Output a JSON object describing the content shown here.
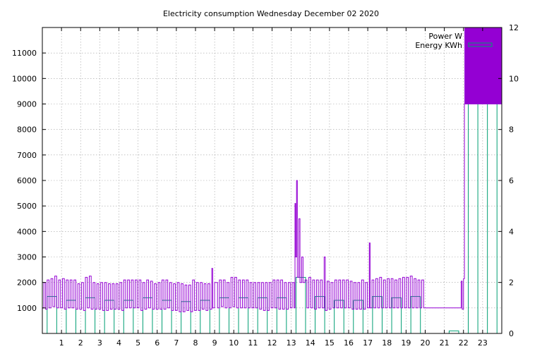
{
  "chart_data": {
    "type": "line",
    "title": "Electricity consumption Wednesday December 02 2020",
    "xlabel": "",
    "ylabel": "",
    "y2label": "",
    "xlim": [
      0,
      24
    ],
    "ylim": [
      0,
      12000
    ],
    "y2lim": [
      0,
      12
    ],
    "x_ticks": [
      1,
      2,
      3,
      4,
      5,
      6,
      7,
      8,
      9,
      10,
      11,
      12,
      13,
      14,
      15,
      16,
      17,
      18,
      19,
      20,
      21,
      22,
      23
    ],
    "y_ticks": [
      1000,
      2000,
      3000,
      4000,
      5000,
      6000,
      7000,
      8000,
      9000,
      10000,
      11000
    ],
    "y2_ticks": [
      0,
      2,
      4,
      6,
      8,
      10,
      12
    ],
    "grid": true,
    "legend": "top-right",
    "series": [
      {
        "name": "Power W",
        "axis": "left",
        "style": "steps",
        "color": "#9400d3",
        "points": [
          [
            0.0,
            1000
          ],
          [
            0.08,
            2000
          ],
          [
            0.17,
            950
          ],
          [
            0.25,
            2100
          ],
          [
            0.35,
            1000
          ],
          [
            0.45,
            2150
          ],
          [
            0.55,
            1050
          ],
          [
            0.65,
            2250
          ],
          [
            0.75,
            1000
          ],
          [
            0.85,
            2100
          ],
          [
            0.95,
            1000
          ],
          [
            1.05,
            2150
          ],
          [
            1.15,
            950
          ],
          [
            1.25,
            2100
          ],
          [
            1.35,
            1000
          ],
          [
            1.45,
            2100
          ],
          [
            1.55,
            1000
          ],
          [
            1.65,
            2100
          ],
          [
            1.75,
            950
          ],
          [
            1.85,
            1950
          ],
          [
            1.95,
            950
          ],
          [
            2.05,
            2000
          ],
          [
            2.15,
            900
          ],
          [
            2.25,
            2200
          ],
          [
            2.35,
            1000
          ],
          [
            2.45,
            2250
          ],
          [
            2.55,
            950
          ],
          [
            2.65,
            2000
          ],
          [
            2.75,
            950
          ],
          [
            2.85,
            1950
          ],
          [
            2.95,
            950
          ],
          [
            3.05,
            2000
          ],
          [
            3.15,
            900
          ],
          [
            3.25,
            2000
          ],
          [
            3.35,
            900
          ],
          [
            3.45,
            1950
          ],
          [
            3.55,
            950
          ],
          [
            3.65,
            1950
          ],
          [
            3.75,
            950
          ],
          [
            3.85,
            1950
          ],
          [
            3.95,
            950
          ],
          [
            4.05,
            2000
          ],
          [
            4.15,
            900
          ],
          [
            4.25,
            2100
          ],
          [
            4.35,
            1000
          ],
          [
            4.45,
            2100
          ],
          [
            4.55,
            1000
          ],
          [
            4.65,
            2100
          ],
          [
            4.75,
            1000
          ],
          [
            4.85,
            2100
          ],
          [
            4.95,
            1000
          ],
          [
            5.05,
            2100
          ],
          [
            5.15,
            900
          ],
          [
            5.25,
            2000
          ],
          [
            5.35,
            950
          ],
          [
            5.45,
            2100
          ],
          [
            5.55,
            1000
          ],
          [
            5.65,
            2050
          ],
          [
            5.75,
            950
          ],
          [
            5.85,
            1950
          ],
          [
            5.95,
            950
          ],
          [
            6.05,
            2000
          ],
          [
            6.15,
            950
          ],
          [
            6.25,
            2100
          ],
          [
            6.35,
            950
          ],
          [
            6.45,
            2100
          ],
          [
            6.55,
            1000
          ],
          [
            6.65,
            2000
          ],
          [
            6.75,
            900
          ],
          [
            6.85,
            1950
          ],
          [
            6.95,
            900
          ],
          [
            7.05,
            2000
          ],
          [
            7.15,
            850
          ],
          [
            7.25,
            1950
          ],
          [
            7.35,
            850
          ],
          [
            7.45,
            1900
          ],
          [
            7.55,
            900
          ],
          [
            7.65,
            1900
          ],
          [
            7.75,
            850
          ],
          [
            7.85,
            2100
          ],
          [
            7.95,
            900
          ],
          [
            8.05,
            2000
          ],
          [
            8.15,
            900
          ],
          [
            8.25,
            2000
          ],
          [
            8.35,
            950
          ],
          [
            8.45,
            1950
          ],
          [
            8.55,
            900
          ],
          [
            8.65,
            1950
          ],
          [
            8.75,
            950
          ],
          [
            8.85,
            2550
          ],
          [
            8.9,
            1000
          ],
          [
            9.0,
            2000
          ],
          [
            9.15,
            1000
          ],
          [
            9.25,
            2100
          ],
          [
            9.35,
            1050
          ],
          [
            9.45,
            2100
          ],
          [
            9.55,
            1000
          ],
          [
            9.65,
            2000
          ],
          [
            9.75,
            1000
          ],
          [
            9.85,
            2200
          ],
          [
            9.95,
            1050
          ],
          [
            10.05,
            2200
          ],
          [
            10.15,
            1000
          ],
          [
            10.25,
            2100
          ],
          [
            10.35,
            1000
          ],
          [
            10.45,
            2100
          ],
          [
            10.55,
            1000
          ],
          [
            10.65,
            2100
          ],
          [
            10.75,
            1000
          ],
          [
            10.85,
            2000
          ],
          [
            10.95,
            1000
          ],
          [
            11.05,
            2000
          ],
          [
            11.15,
            1000
          ],
          [
            11.25,
            2000
          ],
          [
            11.35,
            950
          ],
          [
            11.45,
            2000
          ],
          [
            11.55,
            900
          ],
          [
            11.65,
            2000
          ],
          [
            11.75,
            900
          ],
          [
            11.85,
            2000
          ],
          [
            11.95,
            1000
          ],
          [
            12.05,
            2100
          ],
          [
            12.15,
            1000
          ],
          [
            12.25,
            2100
          ],
          [
            12.35,
            950
          ],
          [
            12.45,
            2100
          ],
          [
            12.55,
            950
          ],
          [
            12.65,
            2000
          ],
          [
            12.75,
            950
          ],
          [
            12.85,
            2000
          ],
          [
            12.95,
            1000
          ],
          [
            13.05,
            2000
          ],
          [
            13.15,
            1000
          ],
          [
            13.2,
            5100
          ],
          [
            13.23,
            3000
          ],
          [
            13.28,
            6000
          ],
          [
            13.32,
            2200
          ],
          [
            13.4,
            4500
          ],
          [
            13.46,
            2000
          ],
          [
            13.55,
            3000
          ],
          [
            13.62,
            2000
          ],
          [
            13.72,
            2100
          ],
          [
            13.82,
            1000
          ],
          [
            13.92,
            2200
          ],
          [
            14.02,
            1000
          ],
          [
            14.12,
            2100
          ],
          [
            14.22,
            950
          ],
          [
            14.32,
            2100
          ],
          [
            14.42,
            1000
          ],
          [
            14.52,
            2100
          ],
          [
            14.62,
            1000
          ],
          [
            14.72,
            3000
          ],
          [
            14.78,
            900
          ],
          [
            14.88,
            2050
          ],
          [
            14.98,
            950
          ],
          [
            15.08,
            2000
          ],
          [
            15.18,
            1000
          ],
          [
            15.28,
            2100
          ],
          [
            15.38,
            1000
          ],
          [
            15.48,
            2100
          ],
          [
            15.58,
            1000
          ],
          [
            15.68,
            2100
          ],
          [
            15.78,
            1000
          ],
          [
            15.88,
            2100
          ],
          [
            15.98,
            1000
          ],
          [
            16.08,
            2050
          ],
          [
            16.18,
            950
          ],
          [
            16.28,
            2000
          ],
          [
            16.38,
            950
          ],
          [
            16.48,
            2000
          ],
          [
            16.58,
            950
          ],
          [
            16.68,
            2100
          ],
          [
            16.78,
            950
          ],
          [
            16.88,
            2000
          ],
          [
            16.98,
            1000
          ],
          [
            17.08,
            3550
          ],
          [
            17.12,
            1000
          ],
          [
            17.22,
            2100
          ],
          [
            17.32,
            1000
          ],
          [
            17.42,
            2150
          ],
          [
            17.52,
            1000
          ],
          [
            17.62,
            2200
          ],
          [
            17.72,
            1000
          ],
          [
            17.82,
            2100
          ],
          [
            17.92,
            1000
          ],
          [
            18.02,
            2150
          ],
          [
            18.12,
            1000
          ],
          [
            18.22,
            2150
          ],
          [
            18.32,
            1000
          ],
          [
            18.42,
            2100
          ],
          [
            18.52,
            1000
          ],
          [
            18.62,
            2150
          ],
          [
            18.72,
            1000
          ],
          [
            18.82,
            2200
          ],
          [
            18.92,
            1000
          ],
          [
            19.02,
            2200
          ],
          [
            19.12,
            1000
          ],
          [
            19.22,
            2250
          ],
          [
            19.32,
            1000
          ],
          [
            19.42,
            2150
          ],
          [
            19.52,
            1000
          ],
          [
            19.62,
            2100
          ],
          [
            19.72,
            1000
          ],
          [
            19.82,
            2100
          ],
          [
            19.92,
            1000
          ],
          [
            20.02,
            1000
          ],
          [
            21.8,
            1000
          ],
          [
            21.88,
            2050
          ],
          [
            21.93,
            950
          ],
          [
            22.0,
            2150
          ],
          [
            22.05,
            9000
          ],
          [
            24.0,
            9000
          ]
        ]
      },
      {
        "name": "Energy KWh",
        "axis": "right",
        "style": "boxes",
        "color": "#009e73",
        "values": [
          1.45,
          1.3,
          1.4,
          1.3,
          1.3,
          1.4,
          1.3,
          1.25,
          1.3,
          1.4,
          1.4,
          1.4,
          1.4,
          2.2,
          1.45,
          1.3,
          1.3,
          1.45,
          1.4,
          1.45,
          0.0,
          0.1,
          9.9,
          10.2
        ]
      }
    ]
  }
}
